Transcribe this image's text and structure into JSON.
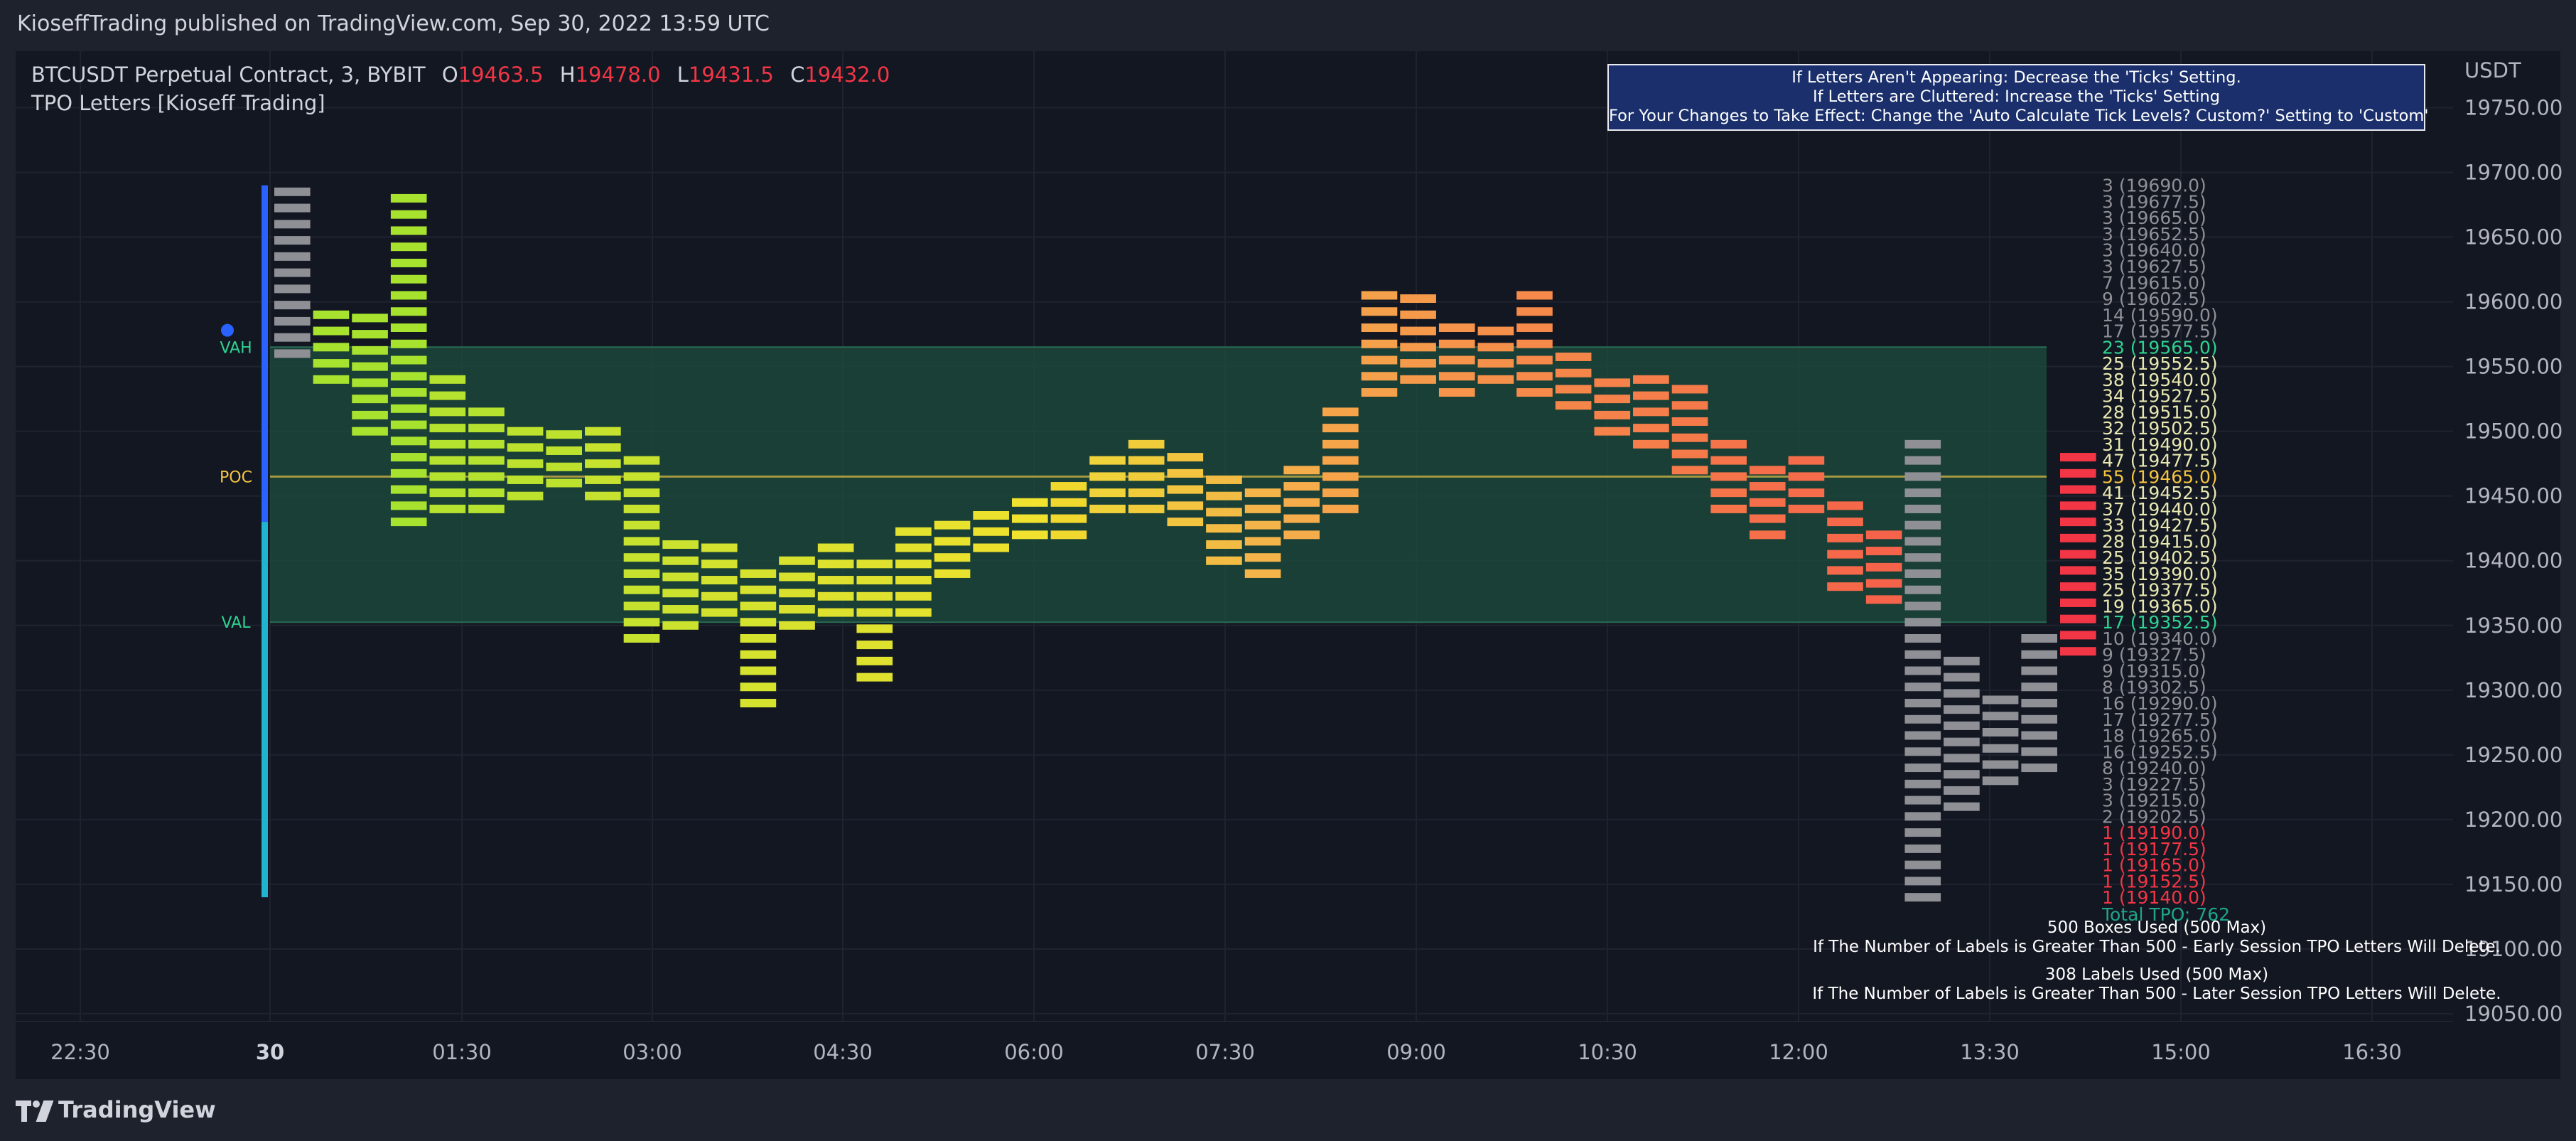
{
  "top_bar": {
    "text": "KioseffTrading published on TradingView.com, Sep 30, 2022 13:59 UTC"
  },
  "header": {
    "symbol": "BTCUSDT Perpetual Contract, 3, BYBIT",
    "o_label": "O",
    "o_value": "19463.5",
    "h_label": "H",
    "h_value": "19478.0",
    "l_label": "L",
    "l_value": "19431.5",
    "c_label": "C",
    "c_value": "19432.0",
    "indicator": "TPO Letters [Kioseff Trading]"
  },
  "notice": {
    "line1": "If Letters Aren't Appearing: Decrease the 'Ticks' Setting.",
    "line2": "If Letters are Cluttered: Increase the 'Ticks' Setting",
    "line3": "For Your Changes to Take Effect: Change the 'Auto Calculate Tick Levels? Custom?' Setting to 'Custom'"
  },
  "currency": "USDT",
  "info": {
    "boxes": "500 Boxes Used (500 Max)",
    "boxes_note": "If The Number of Labels is Greater Than 500 - Early Session TPO Letters Will Delete.",
    "labels": "308 Labels Used (500 Max)",
    "labels_note": "If The Number of Labels is Greater Than 500 - Later Session TPO Letters Will Delete."
  },
  "footer": {
    "brand": "TradingView"
  },
  "chart_data": {
    "type": "tpo_profile",
    "title": "",
    "y_ticks": [
      19750,
      19700,
      19650,
      19600,
      19550,
      19500,
      19450,
      19400,
      19350,
      19300,
      19250,
      19200,
      19150,
      19100,
      19050
    ],
    "ylim": [
      19020,
      19790
    ],
    "x_ticks": [
      "22:30",
      "30",
      "01:30",
      "03:00",
      "04:30",
      "06:00",
      "07:30",
      "09:00",
      "10:30",
      "12:00",
      "13:30",
      "15:00",
      "16:30"
    ],
    "value_area": {
      "vah": 19565.0,
      "poc": 19465.0,
      "val": 19352.5,
      "vah_label": "VAH",
      "poc_label": "POC",
      "val_label": "VAL"
    },
    "colors": {
      "value_area_fill": "#1d4a3c",
      "poc_line": "#a59a41",
      "bar_top": "#2962ff",
      "bar_bottom": "#1fb5d1",
      "vah_val": "#2ed391",
      "poc": "#f5c542",
      "gray": "#8f9096",
      "red": "#f23645"
    },
    "profile": [
      {
        "price": 19690.0,
        "count": 3
      },
      {
        "price": 19677.5,
        "count": 3
      },
      {
        "price": 19665.0,
        "count": 3
      },
      {
        "price": 19652.5,
        "count": 3
      },
      {
        "price": 19640.0,
        "count": 3
      },
      {
        "price": 19627.5,
        "count": 3
      },
      {
        "price": 19615.0,
        "count": 7
      },
      {
        "price": 19602.5,
        "count": 9
      },
      {
        "price": 19590.0,
        "count": 14
      },
      {
        "price": 19577.5,
        "count": 17
      },
      {
        "price": 19565.0,
        "count": 23
      },
      {
        "price": 19552.5,
        "count": 25
      },
      {
        "price": 19540.0,
        "count": 38
      },
      {
        "price": 19527.5,
        "count": 34
      },
      {
        "price": 19515.0,
        "count": 28
      },
      {
        "price": 19502.5,
        "count": 32
      },
      {
        "price": 19490.0,
        "count": 31
      },
      {
        "price": 19477.5,
        "count": 47
      },
      {
        "price": 19465.0,
        "count": 55
      },
      {
        "price": 19452.5,
        "count": 41
      },
      {
        "price": 19440.0,
        "count": 37
      },
      {
        "price": 19427.5,
        "count": 33
      },
      {
        "price": 19415.0,
        "count": 28
      },
      {
        "price": 19402.5,
        "count": 25
      },
      {
        "price": 19390.0,
        "count": 35
      },
      {
        "price": 19377.5,
        "count": 25
      },
      {
        "price": 19365.0,
        "count": 19
      },
      {
        "price": 19352.5,
        "count": 17
      },
      {
        "price": 19340.0,
        "count": 10
      },
      {
        "price": 19327.5,
        "count": 9
      },
      {
        "price": 19315.0,
        "count": 9
      },
      {
        "price": 19302.5,
        "count": 8
      },
      {
        "price": 19290.0,
        "count": 16
      },
      {
        "price": 19277.5,
        "count": 17
      },
      {
        "price": 19265.0,
        "count": 18
      },
      {
        "price": 19252.5,
        "count": 16
      },
      {
        "price": 19240.0,
        "count": 8
      },
      {
        "price": 19227.5,
        "count": 3
      },
      {
        "price": 19215.0,
        "count": 3
      },
      {
        "price": 19202.5,
        "count": 2
      },
      {
        "price": 19190.0,
        "count": 1
      },
      {
        "price": 19177.5,
        "count": 1
      },
      {
        "price": 19165.0,
        "count": 1
      },
      {
        "price": 19152.5,
        "count": 1
      },
      {
        "price": 19140.0,
        "count": 1
      }
    ],
    "total_label": "Total TPO: 762",
    "tpo_columns": [
      {
        "low": 19560,
        "high": 19690,
        "color": "#8f9096"
      },
      {
        "low": 19540,
        "high": 19590,
        "color": "#a6e22e"
      },
      {
        "low": 19500,
        "high": 19590,
        "color": "#a6e22e"
      },
      {
        "low": 19430,
        "high": 19690,
        "color": "#a6e22e"
      },
      {
        "low": 19440,
        "high": 19550,
        "color": "#b5e22e"
      },
      {
        "low": 19440,
        "high": 19520,
        "color": "#b5e22e"
      },
      {
        "low": 19450,
        "high": 19500,
        "color": "#bde22e"
      },
      {
        "low": 19460,
        "high": 19500,
        "color": "#bde22e"
      },
      {
        "low": 19450,
        "high": 19500,
        "color": "#c6e22e"
      },
      {
        "low": 19340,
        "high": 19480,
        "color": "#c6e22e"
      },
      {
        "low": 19350,
        "high": 19420,
        "color": "#cbe22e"
      },
      {
        "low": 19360,
        "high": 19410,
        "color": "#d2e22e"
      },
      {
        "low": 19290,
        "high": 19400,
        "color": "#d5e22e"
      },
      {
        "low": 19350,
        "high": 19410,
        "color": "#d8e22e"
      },
      {
        "low": 19360,
        "high": 19410,
        "color": "#dee22e"
      },
      {
        "low": 19310,
        "high": 19400,
        "color": "#dee22e"
      },
      {
        "low": 19360,
        "high": 19430,
        "color": "#e2e22e"
      },
      {
        "low": 19390,
        "high": 19430,
        "color": "#e8e22e"
      },
      {
        "low": 19410,
        "high": 19440,
        "color": "#ece22e"
      },
      {
        "low": 19420,
        "high": 19450,
        "color": "#f0e22e"
      },
      {
        "low": 19420,
        "high": 19460,
        "color": "#f0d82e"
      },
      {
        "low": 19440,
        "high": 19480,
        "color": "#f0d23a"
      },
      {
        "low": 19440,
        "high": 19490,
        "color": "#f0cc3a"
      },
      {
        "low": 19430,
        "high": 19480,
        "color": "#f2c440"
      },
      {
        "low": 19400,
        "high": 19470,
        "color": "#f2bc44"
      },
      {
        "low": 19390,
        "high": 19460,
        "color": "#f5b449"
      },
      {
        "low": 19420,
        "high": 19480,
        "color": "#f5ac4a"
      },
      {
        "low": 19440,
        "high": 19520,
        "color": "#f5a44a"
      },
      {
        "low": 19530,
        "high": 19610,
        "color": "#f5a04a"
      },
      {
        "low": 19540,
        "high": 19610,
        "color": "#f59a4a"
      },
      {
        "low": 19530,
        "high": 19590,
        "color": "#f5944a"
      },
      {
        "low": 19540,
        "high": 19580,
        "color": "#f5904a"
      },
      {
        "low": 19530,
        "high": 19610,
        "color": "#f58a4a"
      },
      {
        "low": 19520,
        "high": 19560,
        "color": "#f5864a"
      },
      {
        "low": 19500,
        "high": 19540,
        "color": "#f5824a"
      },
      {
        "low": 19490,
        "high": 19550,
        "color": "#f57e4a"
      },
      {
        "low": 19470,
        "high": 19540,
        "color": "#f57a4a"
      },
      {
        "low": 19440,
        "high": 19500,
        "color": "#f5744a"
      },
      {
        "low": 19420,
        "high": 19470,
        "color": "#f5704a"
      },
      {
        "low": 19440,
        "high": 19480,
        "color": "#f56c4a"
      },
      {
        "low": 19380,
        "high": 19450,
        "color": "#f5684a"
      },
      {
        "low": 19370,
        "high": 19420,
        "color": "#f5644a"
      },
      {
        "low": 19140,
        "high": 19490,
        "color": "#8f9096"
      },
      {
        "low": 19210,
        "high": 19330,
        "color": "#8f9096"
      },
      {
        "low": 19230,
        "high": 19300,
        "color": "#8f9096"
      },
      {
        "low": 19240,
        "high": 19340,
        "color": "#8f9096"
      },
      {
        "low": 19330,
        "high": 19480,
        "color": "#f23645"
      }
    ]
  }
}
